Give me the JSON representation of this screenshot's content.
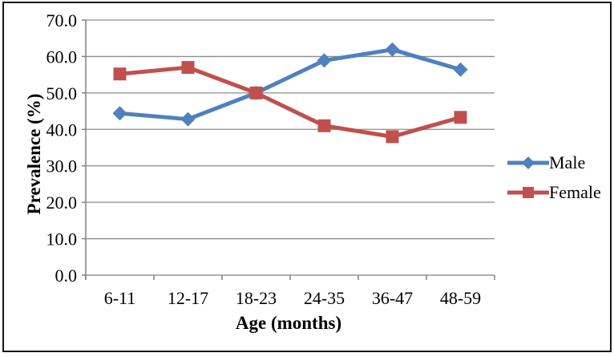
{
  "chart_data": {
    "type": "line",
    "title": "",
    "xlabel": "Age (months)",
    "ylabel": "Prevalence (%)",
    "categories": [
      "6-11",
      "12-17",
      "18-23",
      "24-35",
      "36-47",
      "48-59"
    ],
    "series": [
      {
        "name": "Male",
        "color": "#4F81BD",
        "marker": "diamond",
        "values": [
          44.4,
          42.8,
          50.0,
          58.9,
          61.9,
          56.4
        ]
      },
      {
        "name": "Female",
        "color": "#C0504D",
        "marker": "square",
        "values": [
          55.2,
          57.0,
          50.0,
          41.0,
          38.0,
          43.3
        ]
      }
    ],
    "ylim": [
      0,
      70
    ],
    "y_tick_step": 10,
    "y_tick_labels": [
      "0.0",
      "10.0",
      "20.0",
      "30.0",
      "40.0",
      "50.0",
      "60.0",
      "70.0"
    ],
    "grid": true,
    "legend_position": "right",
    "colors": {
      "axis": "#808080",
      "gridline": "#8C8C8C",
      "background": "#FFFFFF",
      "figure_border": "#161616",
      "text": "#000000"
    }
  }
}
